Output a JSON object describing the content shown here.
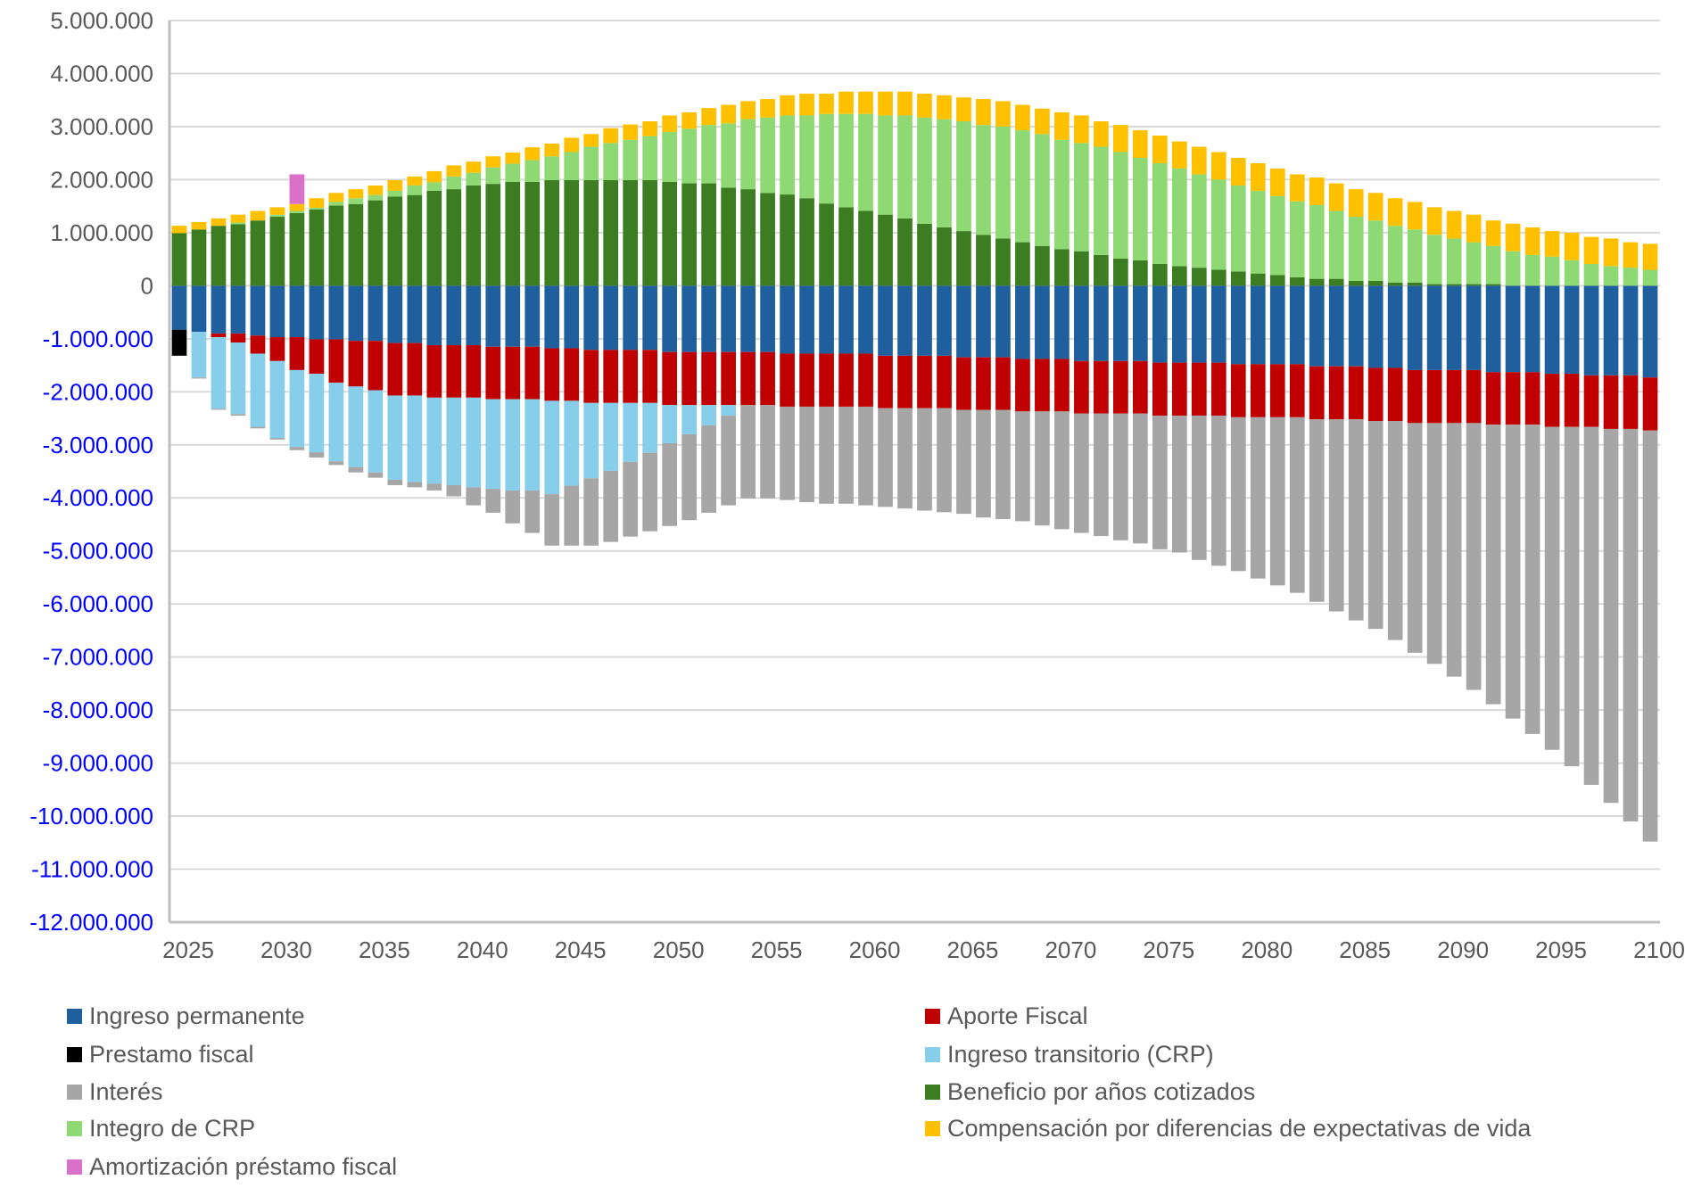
{
  "chart_data": {
    "type": "bar",
    "stacked": true,
    "title": "",
    "xlabel": "",
    "ylabel": "",
    "ylim": [
      -12000000,
      5000000
    ],
    "yticks": [
      5000000,
      4000000,
      3000000,
      2000000,
      1000000,
      0,
      -1000000,
      -2000000,
      -3000000,
      -4000000,
      -5000000,
      -6000000,
      -7000000,
      -8000000,
      -9000000,
      -10000000,
      -11000000,
      -12000000
    ],
    "ytick_labels": [
      "5.000.000",
      "4.000.000",
      "3.000.000",
      "2.000.000",
      "1.000.000",
      "0",
      "-1.000.000",
      "-2.000.000",
      "-3.000.000",
      "-4.000.000",
      "-5.000.000",
      "-6.000.000",
      "-7.000.000",
      "-8.000.000",
      "-9.000.000",
      "-10.000.000",
      "-11.000.000",
      "-12.000.000"
    ],
    "ytick_colors": {
      "positive": "#595959",
      "negative": "#0000ff"
    },
    "grid": true,
    "legend_position": "bottom",
    "x_start": 2025,
    "x_end": 2100,
    "xtick_labels": [
      "2025",
      "2030",
      "2035",
      "2040",
      "2045",
      "2050",
      "2055",
      "2060",
      "2065",
      "2070",
      "2075",
      "2080",
      "2085",
      "2090",
      "2095",
      "2100"
    ],
    "units": "millions (values shown ×1.000.000)",
    "series": [
      {
        "name": "Ingreso permanente",
        "color": "#1f5f9e",
        "side": "negative",
        "values": [
          -0.83,
          -0.87,
          -0.9,
          -0.9,
          -0.94,
          -0.97,
          -0.97,
          -1.01,
          -1.01,
          -1.04,
          -1.04,
          -1.08,
          -1.08,
          -1.12,
          -1.12,
          -1.12,
          -1.15,
          -1.15,
          -1.15,
          -1.18,
          -1.18,
          -1.21,
          -1.21,
          -1.21,
          -1.21,
          -1.25,
          -1.25,
          -1.25,
          -1.25,
          -1.25,
          -1.25,
          -1.28,
          -1.28,
          -1.28,
          -1.28,
          -1.28,
          -1.32,
          -1.32,
          -1.32,
          -1.32,
          -1.35,
          -1.35,
          -1.35,
          -1.38,
          -1.38,
          -1.38,
          -1.42,
          -1.42,
          -1.42,
          -1.42,
          -1.45,
          -1.45,
          -1.45,
          -1.45,
          -1.48,
          -1.48,
          -1.48,
          -1.48,
          -1.52,
          -1.52,
          -1.52,
          -1.55,
          -1.55,
          -1.59,
          -1.59,
          -1.59,
          -1.59,
          -1.63,
          -1.63,
          -1.63,
          -1.66,
          -1.66,
          -1.69,
          -1.69,
          -1.69,
          -1.73
        ]
      },
      {
        "name": "Prestamo fiscal",
        "color": "#000000",
        "side": "negative",
        "values": [
          -0.49,
          0,
          0,
          0,
          0,
          0,
          0,
          0,
          0,
          0,
          0,
          0,
          0,
          0,
          0,
          0,
          0,
          0,
          0,
          0,
          0,
          0,
          0,
          0,
          0,
          0,
          0,
          0,
          0,
          0,
          0,
          0,
          0,
          0,
          0,
          0,
          0,
          0,
          0,
          0,
          0,
          0,
          0,
          0,
          0,
          0,
          0,
          0,
          0,
          0,
          0,
          0,
          0,
          0,
          0,
          0,
          0,
          0,
          0,
          0,
          0,
          0,
          0,
          0,
          0,
          0,
          0,
          0,
          0,
          0,
          0,
          0,
          0,
          0,
          0,
          0
        ]
      },
      {
        "name": "Aporte Fiscal",
        "color": "#c00000",
        "side": "negative",
        "values": [
          0,
          0,
          -0.07,
          -0.17,
          -0.34,
          -0.45,
          -0.62,
          -0.65,
          -0.82,
          -0.86,
          -0.93,
          -0.99,
          -0.99,
          -0.99,
          -0.99,
          -0.99,
          -0.99,
          -0.99,
          -0.99,
          -0.99,
          -0.99,
          -1.0,
          -1.0,
          -1.0,
          -1.0,
          -1.0,
          -1.0,
          -1.0,
          -1.0,
          -1.0,
          -1.0,
          -1.0,
          -1.0,
          -1.0,
          -1.0,
          -1.0,
          -0.99,
          -0.99,
          -0.99,
          -0.99,
          -0.99,
          -0.99,
          -0.99,
          -0.99,
          -0.99,
          -0.99,
          -0.99,
          -0.99,
          -0.99,
          -0.99,
          -1.0,
          -1.0,
          -1.0,
          -1.0,
          -1.0,
          -1.0,
          -1.0,
          -1.0,
          -1.0,
          -1.0,
          -1.0,
          -1.0,
          -1.0,
          -1.0,
          -1.0,
          -1.0,
          -1.0,
          -0.99,
          -0.99,
          -0.99,
          -1.0,
          -1.0,
          -0.97,
          -1.01,
          -1.01,
          -1.0
        ]
      },
      {
        "name": "Ingreso transitorio (CRP)",
        "color": "#87ceeb",
        "side": "negative",
        "values": [
          0,
          -0.86,
          -1.35,
          -1.35,
          -1.38,
          -1.45,
          -1.45,
          -1.48,
          -1.48,
          -1.52,
          -1.55,
          -1.59,
          -1.63,
          -1.62,
          -1.65,
          -1.69,
          -1.69,
          -1.72,
          -1.72,
          -1.76,
          -1.6,
          -1.42,
          -1.28,
          -1.11,
          -0.94,
          -0.72,
          -0.55,
          -0.38,
          -0.2,
          0,
          0,
          0,
          0,
          0,
          0,
          0,
          0,
          0,
          0,
          0,
          0,
          0,
          0,
          0,
          0,
          0,
          0,
          0,
          0,
          0,
          0,
          0,
          0,
          0,
          0,
          0,
          0,
          0,
          0,
          0,
          0,
          0,
          0,
          0,
          0,
          0,
          0,
          0,
          0,
          0,
          0,
          0,
          0,
          0,
          0,
          0
        ]
      },
      {
        "name": "Interés",
        "color": "#a6a6a6",
        "side": "negative",
        "values": [
          0,
          -0.02,
          -0.02,
          -0.03,
          -0.03,
          -0.03,
          -0.06,
          -0.1,
          -0.07,
          -0.1,
          -0.1,
          -0.1,
          -0.1,
          -0.13,
          -0.21,
          -0.34,
          -0.45,
          -0.62,
          -0.8,
          -0.97,
          -1.13,
          -1.27,
          -1.34,
          -1.41,
          -1.48,
          -1.56,
          -1.62,
          -1.65,
          -1.69,
          -1.76,
          -1.76,
          -1.76,
          -1.8,
          -1.83,
          -1.83,
          -1.86,
          -1.86,
          -1.89,
          -1.93,
          -1.96,
          -1.96,
          -2.03,
          -2.06,
          -2.07,
          -2.15,
          -2.22,
          -2.25,
          -2.31,
          -2.39,
          -2.45,
          -2.52,
          -2.58,
          -2.72,
          -2.83,
          -2.9,
          -3.04,
          -3.17,
          -3.31,
          -3.44,
          -3.62,
          -3.79,
          -3.92,
          -4.13,
          -4.33,
          -4.54,
          -4.78,
          -5.03,
          -5.27,
          -5.54,
          -5.83,
          -6.09,
          -6.4,
          -6.75,
          -7.05,
          -7.4,
          -7.75
        ]
      },
      {
        "name": "Beneficio por años cotizados",
        "color": "#3c7d22",
        "side": "positive",
        "values": [
          0.99,
          1.06,
          1.13,
          1.16,
          1.23,
          1.3,
          1.37,
          1.44,
          1.51,
          1.54,
          1.61,
          1.68,
          1.71,
          1.79,
          1.82,
          1.89,
          1.92,
          1.96,
          1.96,
          1.99,
          1.99,
          1.99,
          1.99,
          1.99,
          1.99,
          1.96,
          1.93,
          1.93,
          1.85,
          1.82,
          1.75,
          1.72,
          1.65,
          1.55,
          1.48,
          1.41,
          1.34,
          1.27,
          1.17,
          1.1,
          1.03,
          0.96,
          0.89,
          0.82,
          0.75,
          0.69,
          0.65,
          0.58,
          0.51,
          0.48,
          0.41,
          0.37,
          0.34,
          0.3,
          0.27,
          0.23,
          0.2,
          0.16,
          0.13,
          0.13,
          0.09,
          0.09,
          0.06,
          0.06,
          0.03,
          0.03,
          0.03,
          0.03,
          0,
          0,
          0,
          0,
          0,
          0,
          0,
          0
        ]
      },
      {
        "name": "Integro de CRP",
        "color": "#8ed973",
        "side": "positive",
        "values": [
          0,
          0,
          0,
          0.03,
          0,
          0.04,
          0.04,
          0.03,
          0.07,
          0.11,
          0.1,
          0.11,
          0.18,
          0.16,
          0.24,
          0.24,
          0.31,
          0.34,
          0.41,
          0.45,
          0.53,
          0.63,
          0.7,
          0.76,
          0.83,
          0.94,
          1.03,
          1.1,
          1.21,
          1.32,
          1.42,
          1.49,
          1.56,
          1.69,
          1.76,
          1.83,
          1.87,
          1.94,
          2.0,
          2.04,
          2.07,
          2.07,
          2.11,
          2.11,
          2.11,
          2.06,
          2.04,
          2.04,
          2.01,
          1.93,
          1.9,
          1.84,
          1.76,
          1.7,
          1.62,
          1.56,
          1.49,
          1.43,
          1.39,
          1.28,
          1.21,
          1.14,
          1.07,
          1.0,
          0.93,
          0.86,
          0.79,
          0.72,
          0.65,
          0.58,
          0.55,
          0.48,
          0.41,
          0.37,
          0.34,
          0.3
        ]
      },
      {
        "name": "Compensación por diferencias de expectativas de vida",
        "color": "#ffc000",
        "side": "positive",
        "values": [
          0.14,
          0.14,
          0.14,
          0.15,
          0.18,
          0.14,
          0.13,
          0.18,
          0.17,
          0.17,
          0.18,
          0.2,
          0.17,
          0.21,
          0.21,
          0.21,
          0.21,
          0.21,
          0.24,
          0.24,
          0.27,
          0.24,
          0.28,
          0.29,
          0.28,
          0.31,
          0.31,
          0.32,
          0.35,
          0.34,
          0.35,
          0.38,
          0.41,
          0.38,
          0.42,
          0.42,
          0.45,
          0.45,
          0.45,
          0.45,
          0.45,
          0.49,
          0.48,
          0.48,
          0.48,
          0.52,
          0.52,
          0.48,
          0.51,
          0.52,
          0.52,
          0.51,
          0.52,
          0.52,
          0.52,
          0.52,
          0.52,
          0.51,
          0.52,
          0.52,
          0.52,
          0.52,
          0.52,
          0.52,
          0.52,
          0.52,
          0.52,
          0.48,
          0.52,
          0.52,
          0.48,
          0.52,
          0.51,
          0.52,
          0.48,
          0.49
        ]
      },
      {
        "name": "Amortización préstamo fiscal",
        "color": "#d971c8",
        "side": "positive",
        "values": [
          0,
          0,
          0,
          0,
          0,
          0,
          0.56,
          0,
          0,
          0,
          0,
          0,
          0,
          0,
          0,
          0,
          0,
          0,
          0,
          0,
          0,
          0,
          0,
          0,
          0,
          0,
          0,
          0,
          0,
          0,
          0,
          0,
          0,
          0,
          0,
          0,
          0,
          0,
          0,
          0,
          0,
          0,
          0,
          0,
          0,
          0,
          0,
          0,
          0,
          0,
          0,
          0,
          0,
          0,
          0,
          0,
          0,
          0,
          0,
          0,
          0,
          0,
          0,
          0,
          0,
          0,
          0,
          0,
          0,
          0,
          0,
          0,
          0,
          0,
          0,
          0
        ]
      }
    ]
  },
  "legend": {
    "left": [
      "Ingreso permanente",
      "Prestamo fiscal",
      "Interés",
      "Integro de CRP",
      "Amortización préstamo fiscal"
    ],
    "right": [
      "Aporte Fiscal",
      "Ingreso transitorio (CRP)",
      "Beneficio por años cotizados",
      "Compensación por diferencias de expectativas de vida"
    ]
  },
  "colors": {
    "grid": "#d9d9d9",
    "axis": "#bfbfbf",
    "tick_text": "#595959",
    "negative_tick_text": "#0000ff"
  }
}
